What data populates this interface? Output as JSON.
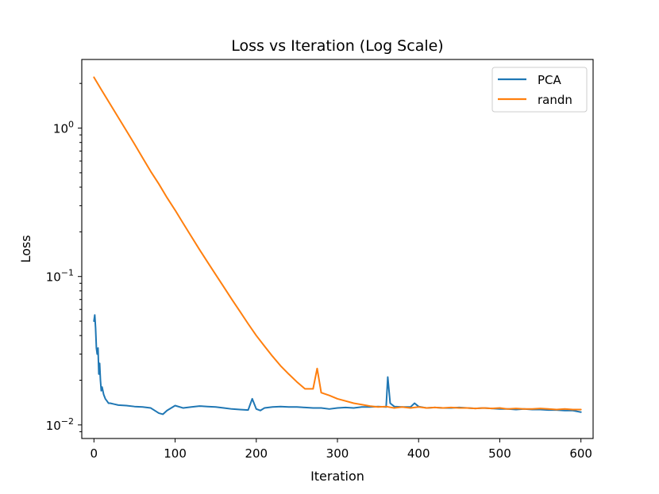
{
  "chart_data": {
    "type": "line",
    "title": "Loss vs Iteration (Log Scale)",
    "xlabel": "Iteration",
    "ylabel": "Loss",
    "yscale": "log",
    "xlim": [
      -15,
      615
    ],
    "ylim": [
      0.0081,
      2.9
    ],
    "xticks": [
      0,
      100,
      200,
      300,
      400,
      500,
      600
    ],
    "yticks": [
      {
        "value": 1,
        "base": "10",
        "exp": "0"
      },
      {
        "value": 0.1,
        "base": "10",
        "exp": "−1"
      },
      {
        "value": 0.01,
        "base": "10",
        "exp": "−2"
      }
    ],
    "legend_position": "top-right",
    "series": [
      {
        "name": "PCA",
        "color": "#1f77b4",
        "x": [
          0,
          1,
          2,
          3,
          4,
          5,
          6,
          7,
          8,
          9,
          10,
          12,
          14,
          16,
          18,
          20,
          25,
          30,
          40,
          50,
          60,
          70,
          80,
          85,
          90,
          100,
          110,
          120,
          130,
          140,
          150,
          160,
          170,
          180,
          190,
          195,
          200,
          205,
          210,
          220,
          230,
          240,
          250,
          260,
          270,
          280,
          290,
          300,
          310,
          320,
          330,
          340,
          350,
          360,
          362,
          365,
          370,
          380,
          390,
          395,
          400,
          410,
          420,
          430,
          440,
          450,
          460,
          470,
          480,
          490,
          500,
          510,
          520,
          530,
          540,
          550,
          560,
          570,
          580,
          590,
          600
        ],
        "values": [
          0.05,
          0.055,
          0.045,
          0.033,
          0.03,
          0.033,
          0.022,
          0.026,
          0.02,
          0.017,
          0.018,
          0.016,
          0.015,
          0.0145,
          0.014,
          0.014,
          0.0138,
          0.0136,
          0.0135,
          0.0133,
          0.0132,
          0.013,
          0.012,
          0.0118,
          0.0125,
          0.0135,
          0.013,
          0.0132,
          0.0134,
          0.0133,
          0.0132,
          0.013,
          0.0128,
          0.0127,
          0.0126,
          0.015,
          0.0128,
          0.0125,
          0.013,
          0.0132,
          0.0133,
          0.0132,
          0.0132,
          0.0131,
          0.013,
          0.013,
          0.0128,
          0.013,
          0.0131,
          0.013,
          0.0132,
          0.0132,
          0.0133,
          0.0132,
          0.021,
          0.014,
          0.0133,
          0.0132,
          0.0132,
          0.014,
          0.0133,
          0.013,
          0.0131,
          0.013,
          0.013,
          0.0131,
          0.013,
          0.0129,
          0.013,
          0.0129,
          0.0128,
          0.0128,
          0.0127,
          0.0128,
          0.0127,
          0.0127,
          0.0126,
          0.0126,
          0.0125,
          0.0125,
          0.0122
        ]
      },
      {
        "name": "randn",
        "color": "#ff7f0e",
        "x": [
          0,
          10,
          20,
          30,
          40,
          50,
          60,
          70,
          80,
          90,
          100,
          110,
          120,
          130,
          140,
          150,
          160,
          170,
          180,
          190,
          200,
          210,
          220,
          230,
          240,
          250,
          260,
          270,
          275,
          280,
          290,
          300,
          310,
          320,
          330,
          340,
          350,
          360,
          370,
          380,
          390,
          400,
          410,
          420,
          430,
          440,
          450,
          460,
          470,
          480,
          490,
          500,
          510,
          520,
          530,
          540,
          550,
          560,
          570,
          580,
          590,
          600
        ],
        "values": [
          2.2,
          1.78,
          1.45,
          1.18,
          0.96,
          0.78,
          0.63,
          0.51,
          0.42,
          0.34,
          0.28,
          0.228,
          0.186,
          0.152,
          0.125,
          0.103,
          0.085,
          0.07,
          0.058,
          0.048,
          0.04,
          0.034,
          0.029,
          0.025,
          0.022,
          0.0195,
          0.0175,
          0.0175,
          0.024,
          0.0165,
          0.0158,
          0.015,
          0.0145,
          0.014,
          0.0137,
          0.0134,
          0.0132,
          0.0133,
          0.013,
          0.0132,
          0.013,
          0.0132,
          0.013,
          0.0131,
          0.013,
          0.0131,
          0.013,
          0.013,
          0.0129,
          0.013,
          0.0129,
          0.013,
          0.0128,
          0.0129,
          0.0128,
          0.0128,
          0.0129,
          0.0128,
          0.0127,
          0.0128,
          0.0127,
          0.0127
        ]
      }
    ]
  }
}
